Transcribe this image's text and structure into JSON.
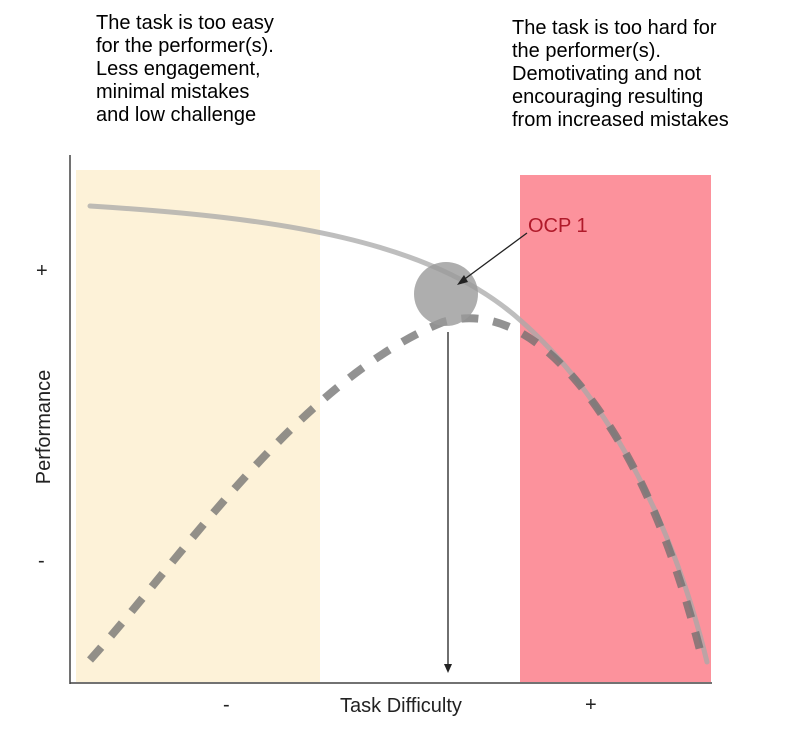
{
  "notes": {
    "easy": "The task is too easy\nfor the performer(s).\nLess engagement,\nminimal mistakes\nand low challenge",
    "hard": "The task is too hard for\nthe performer(s).\nDemotivating and not\nencouraging resulting\nfrom increased mistakes"
  },
  "axes": {
    "x_label": "Task Difficulty",
    "y_label": "Performance",
    "x_minus": "-",
    "x_plus": "+",
    "y_plus": "+",
    "y_minus": "-"
  },
  "callout": {
    "label": "OCP 1"
  },
  "colors": {
    "easy_zone": "#fdf2d8",
    "hard_zone": "#fc929c",
    "solid_curve": "#a8a8a8",
    "dashed_curve": "#6e6e6e",
    "ocp_marker": "#9a9a9a",
    "ocp_label": "#b01a2a"
  }
}
